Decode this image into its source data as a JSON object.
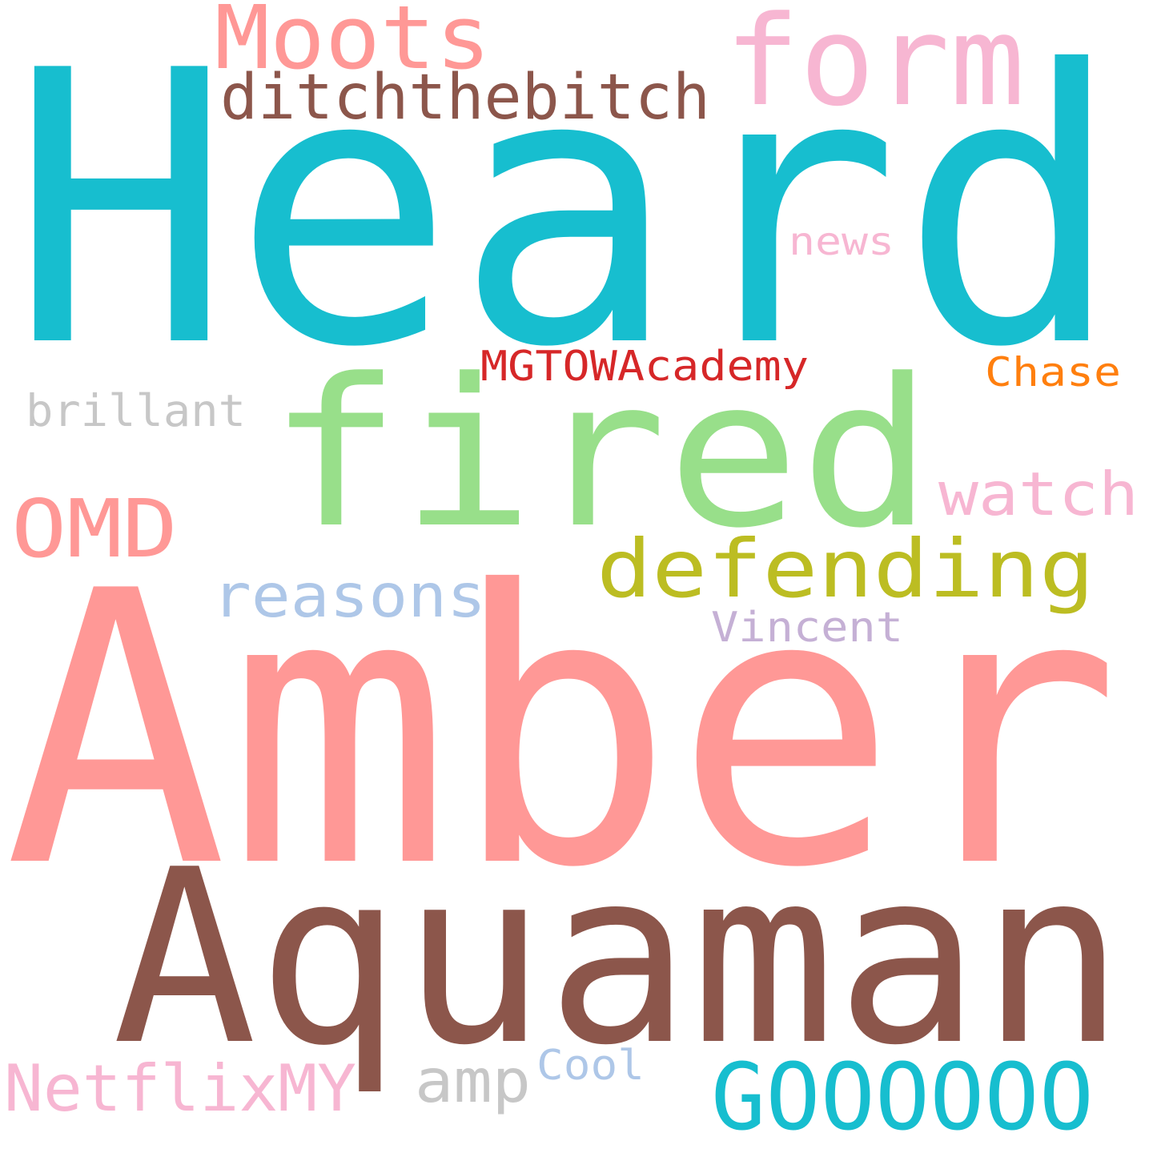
{
  "words": [
    {
      "key": "heard",
      "text": "Heard",
      "color": "#17becf"
    },
    {
      "key": "amber",
      "text": "Amber",
      "color": "#ff9896"
    },
    {
      "key": "aquaman",
      "text": "Aquaman",
      "color": "#8c564b"
    },
    {
      "key": "fired",
      "text": "fired",
      "color": "#98df8a"
    },
    {
      "key": "form",
      "text": "form",
      "color": "#f7b6d2"
    },
    {
      "key": "moots",
      "text": "Moots",
      "color": "#ff9896"
    },
    {
      "key": "ditchthebitch",
      "text": "ditchthebitch",
      "color": "#8c564b"
    },
    {
      "key": "news",
      "text": "news",
      "color": "#f7b6d2"
    },
    {
      "key": "mgtowacademy",
      "text": "MGTOWAcademy",
      "color": "#d62728"
    },
    {
      "key": "chase",
      "text": "Chase",
      "color": "#ff7f0e"
    },
    {
      "key": "brillant",
      "text": "brillant",
      "color": "#c7c7c7"
    },
    {
      "key": "omd",
      "text": "OMD",
      "color": "#ff9896"
    },
    {
      "key": "watch",
      "text": "watch",
      "color": "#f7b6d2"
    },
    {
      "key": "defending",
      "text": "defending",
      "color": "#bcbd22"
    },
    {
      "key": "reasons",
      "text": "reasons",
      "color": "#aec7e8"
    },
    {
      "key": "vincent",
      "text": "Vincent",
      "color": "#c5b0d5"
    },
    {
      "key": "netflixmy",
      "text": "NetflixMY",
      "color": "#f7b6d2"
    },
    {
      "key": "amp",
      "text": "amp",
      "color": "#c7c7c7"
    },
    {
      "key": "cool",
      "text": "Cool",
      "color": "#aec7e8"
    },
    {
      "key": "gooooooo",
      "text": "GOOOOOO",
      "color": "#17becf"
    }
  ]
}
